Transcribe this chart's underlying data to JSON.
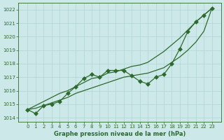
{
  "x": [
    0,
    1,
    2,
    3,
    4,
    5,
    6,
    7,
    8,
    9,
    10,
    11,
    12,
    13,
    14,
    15,
    16,
    17,
    18,
    19,
    20,
    21,
    22,
    23
  ],
  "zigzag": [
    1014.6,
    1014.3,
    1014.9,
    1015.0,
    1015.2,
    1015.8,
    1016.3,
    1016.9,
    1017.2,
    1017.0,
    1017.5,
    1017.5,
    1017.5,
    1017.1,
    1016.7,
    1016.5,
    1017.0,
    1017.2,
    1018.0,
    1019.1,
    1020.4,
    1021.1,
    1021.6,
    1022.1
  ],
  "line_upper": [
    1014.6,
    1014.9,
    1015.2,
    1015.5,
    1015.8,
    1016.0,
    1016.3,
    1016.6,
    1016.9,
    1017.0,
    1017.3,
    1017.4,
    1017.6,
    1017.8,
    1017.9,
    1018.1,
    1018.5,
    1018.9,
    1019.4,
    1019.9,
    1020.5,
    1021.1,
    1021.6,
    1022.1
  ],
  "line_lower": [
    1014.6,
    1014.7,
    1014.9,
    1015.1,
    1015.3,
    1015.5,
    1015.8,
    1016.0,
    1016.2,
    1016.4,
    1016.6,
    1016.8,
    1017.0,
    1017.1,
    1017.2,
    1017.3,
    1017.5,
    1017.7,
    1018.1,
    1018.5,
    1019.0,
    1019.6,
    1020.4,
    1022.1
  ],
  "color": "#2d6a2d",
  "bg_color": "#cce8e8",
  "grid_color": "#b0d4d4",
  "xlabel": "Graphe pression niveau de la mer (hPa)",
  "ylim": [
    1013.7,
    1022.5
  ],
  "yticks": [
    1014,
    1015,
    1016,
    1017,
    1018,
    1019,
    1020,
    1021,
    1022
  ],
  "xticks": [
    0,
    1,
    2,
    3,
    4,
    5,
    6,
    7,
    8,
    9,
    10,
    11,
    12,
    13,
    14,
    15,
    16,
    17,
    18,
    19,
    20,
    21,
    22,
    23
  ],
  "marker": "D",
  "marker_size": 3
}
